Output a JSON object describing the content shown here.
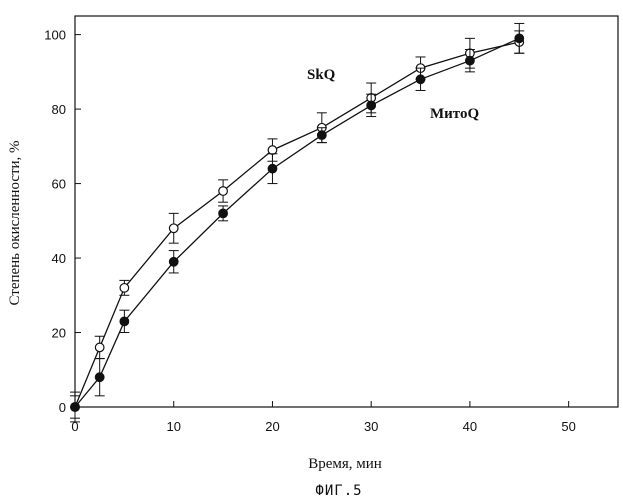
{
  "chart_data": {
    "type": "line",
    "title": "",
    "caption": "ФИГ.5",
    "xlabel": "Время, мин",
    "ylabel": "Степень окисленности, %",
    "xlim": [
      0,
      55
    ],
    "ylim": [
      0,
      105
    ],
    "xticks": [
      0,
      10,
      20,
      30,
      40,
      50
    ],
    "yticks": [
      0,
      20,
      40,
      60,
      80,
      100
    ],
    "grid": false,
    "series": [
      {
        "name": "SkQ",
        "marker": "open-circle",
        "x": [
          0,
          2.5,
          5,
          10,
          15,
          20,
          25,
          30,
          35,
          40,
          45
        ],
        "y": [
          0,
          16,
          32,
          48,
          58,
          69,
          75,
          83,
          91,
          95,
          98
        ],
        "err": [
          4,
          3,
          2,
          4,
          3,
          3,
          4,
          4,
          3,
          4,
          3
        ]
      },
      {
        "name": "МитоQ",
        "marker": "filled-circle",
        "x": [
          0,
          2.5,
          5,
          10,
          15,
          20,
          25,
          30,
          35,
          40,
          45
        ],
        "y": [
          0,
          8,
          23,
          39,
          52,
          64,
          73,
          81,
          88,
          93,
          99
        ],
        "err": [
          3,
          5,
          3,
          3,
          2,
          4,
          2,
          3,
          3,
          3,
          4
        ]
      }
    ]
  }
}
